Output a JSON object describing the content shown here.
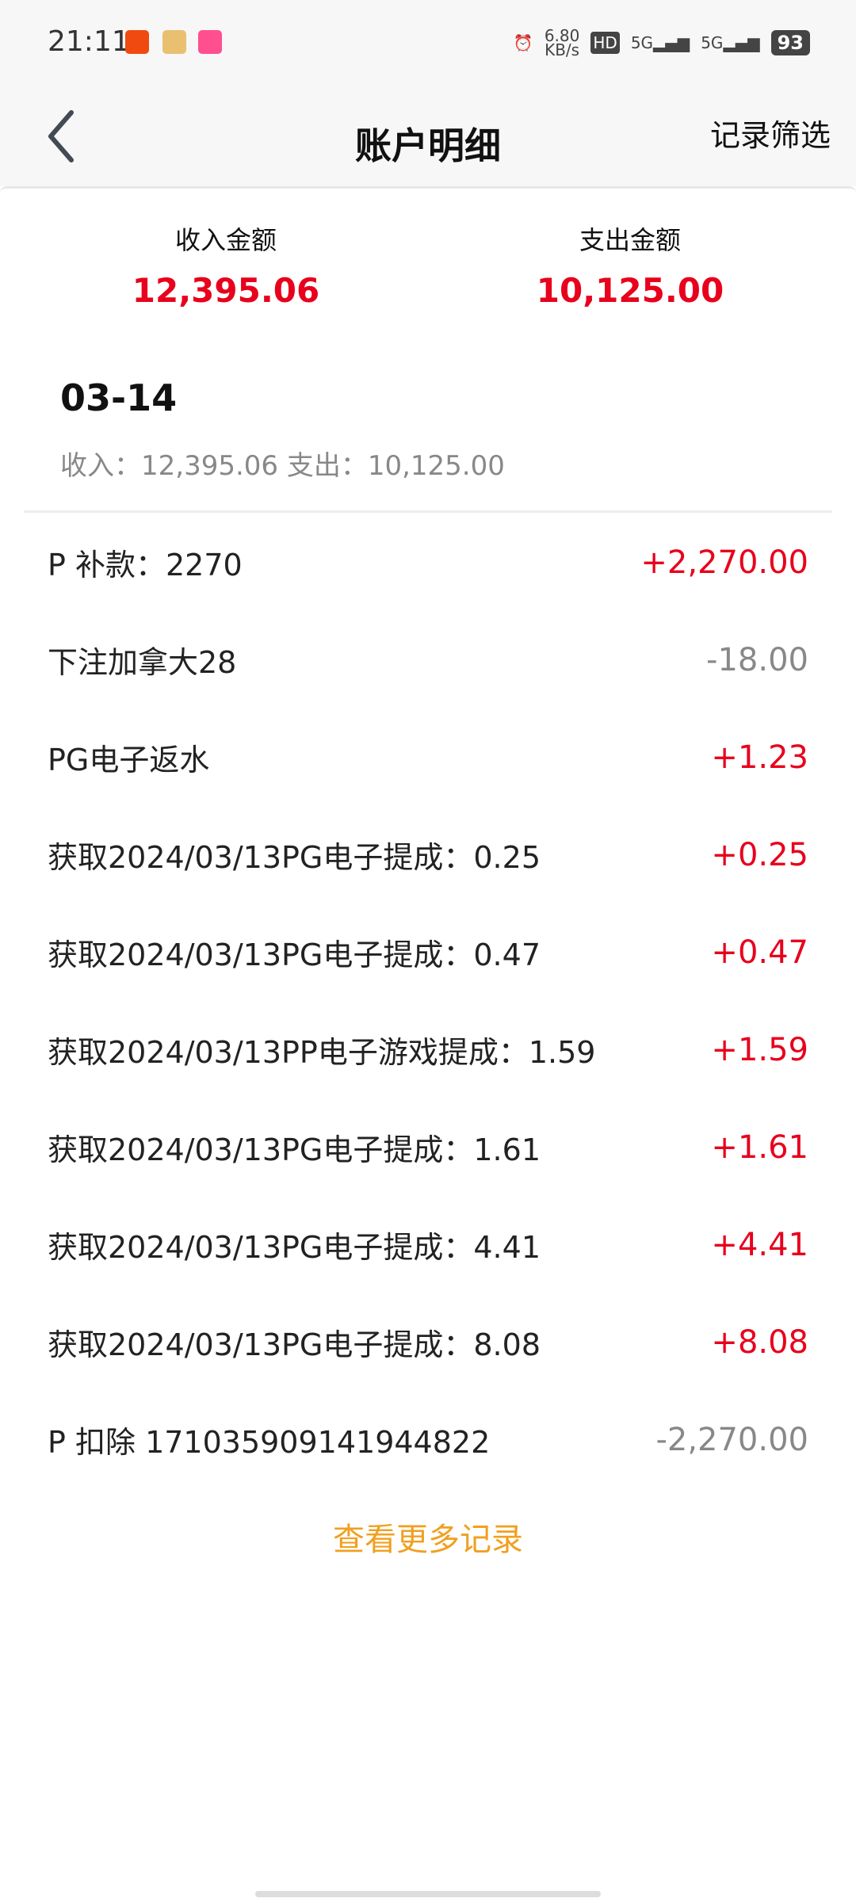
{
  "status_bar": {
    "time": "21:11",
    "net_speed": "6.80",
    "net_unit": "KB/s",
    "hd": "HD",
    "sim1": "5G",
    "sim2": "5G",
    "battery": "93"
  },
  "header": {
    "title": "账户明细",
    "filter_label": "记录筛选"
  },
  "summary": {
    "income_label": "收入金额",
    "income_value": "12,395.06",
    "expense_label": "支出金额",
    "expense_value": "10,125.00"
  },
  "group": {
    "date": "03-14",
    "subtitle": "收入：12,395.06 支出：10,125.00"
  },
  "records": [
    {
      "desc": "P 补款：2270",
      "amount": "+2,270.00",
      "type": "income"
    },
    {
      "desc": "下注加拿大28",
      "amount": "-18.00",
      "type": "expense"
    },
    {
      "desc": "PG电子返水",
      "amount": "+1.23",
      "type": "income"
    },
    {
      "desc": "获取2024/03/13PG电子提成：0.25",
      "amount": "+0.25",
      "type": "income"
    },
    {
      "desc": "获取2024/03/13PG电子提成：0.47",
      "amount": "+0.47",
      "type": "income"
    },
    {
      "desc": "获取2024/03/13PP电子游戏提成：1.59",
      "amount": "+1.59",
      "type": "income"
    },
    {
      "desc": "获取2024/03/13PG电子提成：1.61",
      "amount": "+1.61",
      "type": "income"
    },
    {
      "desc": "获取2024/03/13PG电子提成：4.41",
      "amount": "+4.41",
      "type": "income"
    },
    {
      "desc": "获取2024/03/13PG电子提成：8.08",
      "amount": "+8.08",
      "type": "income"
    },
    {
      "desc": "P 扣除 171035909141944822",
      "amount": "-2,270.00",
      "type": "expense"
    }
  ],
  "more_label": "查看更多记录",
  "colors": {
    "income": "#e8001c",
    "expense": "#888888",
    "link": "#f0a020"
  }
}
